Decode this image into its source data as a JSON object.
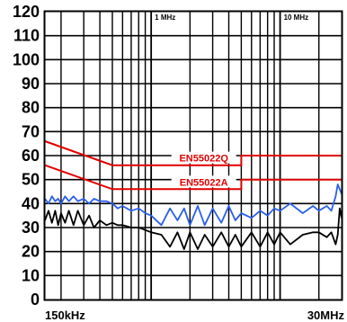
{
  "chart_data": {
    "type": "line",
    "title": "",
    "xlabel": "",
    "ylabel": "",
    "x_scale": "log",
    "xlim_hz": [
      150000,
      30000000
    ],
    "ylim": [
      0,
      120
    ],
    "grid": true,
    "x_tick_labels": {
      "start": "150kHz",
      "end": "30MHz"
    },
    "decade_labels": [
      {
        "text": "1 MHz",
        "x_hz": 1000000
      },
      {
        "text": "10 MHz",
        "x_hz": 10000000
      }
    ],
    "y_ticks": [
      0,
      10,
      20,
      30,
      40,
      50,
      60,
      70,
      80,
      90,
      100,
      110,
      120
    ],
    "colors": {
      "limits": "#e00000",
      "series_blue": "#2a5fe8",
      "series_black": "#000000",
      "grid": "#000000"
    },
    "limits": [
      {
        "name": "EN55022Q",
        "x_hz": [
          150000,
          500000,
          5000000,
          5000000,
          30000000
        ],
        "y": [
          66,
          56,
          56,
          60,
          60
        ]
      },
      {
        "name": "EN55022A",
        "x_hz": [
          150000,
          500000,
          5000000,
          5000000,
          30000000
        ],
        "y": [
          56,
          46,
          46,
          50,
          50
        ]
      }
    ],
    "series": [
      {
        "x_hz": [
          150000,
          160000,
          170000,
          180000,
          190000,
          200000,
          215000,
          230000,
          250000,
          270000,
          300000,
          330000,
          360000,
          400000,
          450000,
          500000,
          550000,
          600000,
          700000,
          800000,
          900000,
          1000000,
          1200000,
          1400000,
          1600000,
          1800000,
          2000000,
          2300000,
          2600000,
          3000000,
          3500000,
          4000000,
          4500000,
          5000000,
          6000000,
          7000000,
          8000000,
          9000000,
          10000000,
          12000000,
          15000000,
          18000000,
          20000000,
          23000000,
          25000000,
          27000000,
          28000000,
          29000000,
          30000000
        ],
        "values": [
          42,
          40,
          43,
          41,
          42,
          40,
          43,
          41,
          43,
          41,
          42,
          40,
          42,
          41,
          41,
          40,
          38,
          39,
          37,
          38,
          36,
          35,
          31,
          38,
          33,
          38,
          31,
          39,
          31,
          38,
          32,
          39,
          33,
          36,
          34,
          37,
          35,
          38,
          37,
          40,
          36,
          39,
          37,
          39,
          37,
          43,
          48,
          46,
          44
        ]
      },
      {
        "x_hz": [
          150000,
          160000,
          170000,
          180000,
          190000,
          200000,
          215000,
          230000,
          250000,
          270000,
          300000,
          330000,
          360000,
          400000,
          450000,
          500000,
          550000,
          600000,
          700000,
          800000,
          900000,
          1000000,
          1200000,
          1400000,
          1600000,
          1800000,
          2000000,
          2300000,
          2600000,
          3000000,
          3500000,
          4000000,
          4500000,
          5000000,
          6000000,
          7000000,
          8000000,
          9000000,
          10000000,
          12000000,
          15000000,
          18000000,
          20000000,
          23000000,
          25000000,
          27000000,
          28000000,
          29000000,
          30000000
        ],
        "values": [
          33,
          37,
          32,
          37,
          31,
          36,
          32,
          37,
          31,
          37,
          31,
          35,
          30,
          33,
          31,
          32,
          31,
          31,
          30,
          30,
          29,
          28,
          27,
          22,
          28,
          21,
          28,
          21,
          27,
          22,
          28,
          22,
          27,
          22,
          28,
          22,
          28,
          23,
          28,
          23,
          27,
          28,
          28,
          26,
          28,
          23,
          27,
          38,
          34
        ]
      }
    ]
  }
}
